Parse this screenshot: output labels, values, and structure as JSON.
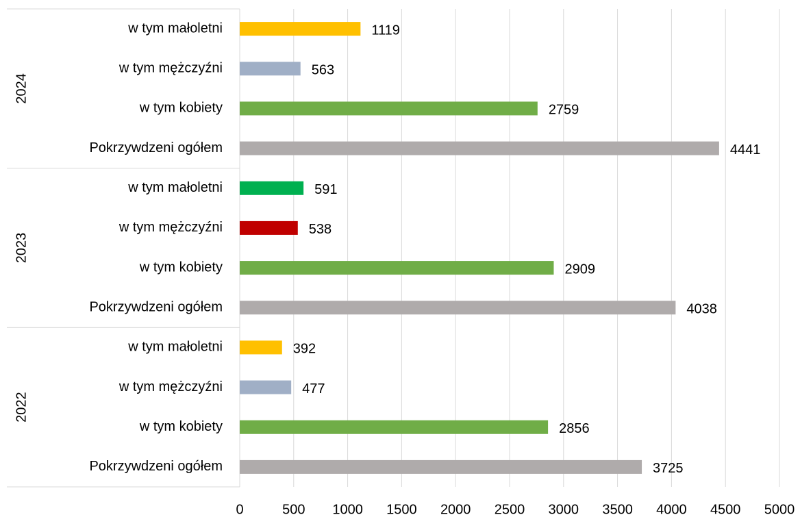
{
  "chart_data": {
    "type": "bar",
    "orientation": "horizontal",
    "groups": [
      {
        "label": "2024",
        "categories": [
          "w tym małoletni",
          "w tym mężczyźni",
          "w tym kobiety",
          "Pokrzywdzeni ogółem"
        ],
        "values": [
          1119,
          563,
          2759,
          4441
        ],
        "colors": [
          "#ffc000",
          "#a0afc6",
          "#70ad47",
          "#afabab"
        ]
      },
      {
        "label": "2023",
        "categories": [
          "w tym małoletni",
          "w tym mężczyźni",
          "w tym kobiety",
          "Pokrzywdzeni ogółem"
        ],
        "values": [
          591,
          538,
          2909,
          4038
        ],
        "colors": [
          "#00b050",
          "#c00000",
          "#70ad47",
          "#afabab"
        ]
      },
      {
        "label": "2022",
        "categories": [
          "w tym małoletni",
          "w tym mężczyźni",
          "w tym kobiety",
          "Pokrzywdzeni ogółem"
        ],
        "values": [
          392,
          477,
          2856,
          3725
        ],
        "colors": [
          "#ffc000",
          "#a0afc6",
          "#70ad47",
          "#afabab"
        ]
      }
    ],
    "xlim": [
      0,
      5000
    ],
    "xticks": [
      0,
      500,
      1000,
      1500,
      2000,
      2500,
      3000,
      3500,
      4000,
      4500,
      5000
    ],
    "grid": true
  }
}
